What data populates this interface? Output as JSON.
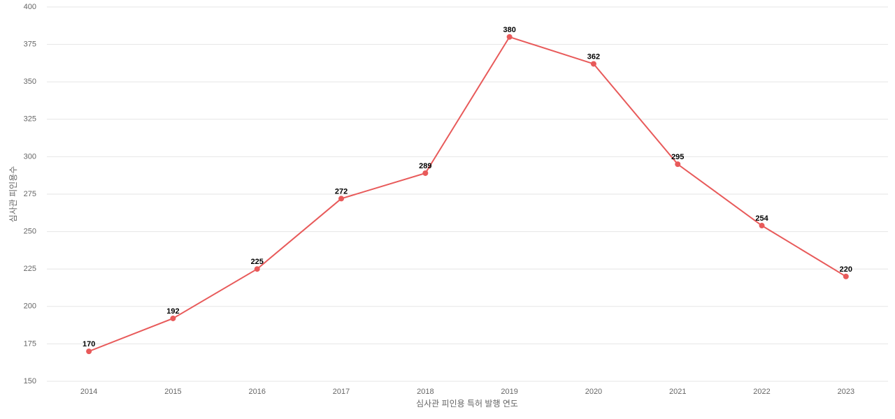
{
  "chart_data": {
    "type": "line",
    "x_label": "심사관 피인용 특허 발행 연도",
    "y_label": "심사관 피인용수",
    "categories": [
      "2014",
      "2015",
      "2016",
      "2017",
      "2018",
      "2019",
      "2020",
      "2021",
      "2022",
      "2023"
    ],
    "values": [
      170,
      192,
      225,
      272,
      289,
      380,
      362,
      295,
      254,
      220
    ],
    "color": "#e85a5a",
    "ylim": [
      150,
      400
    ],
    "yticks": [
      150,
      175,
      200,
      225,
      250,
      275,
      300,
      325,
      350,
      375,
      400
    ],
    "grid": true
  }
}
